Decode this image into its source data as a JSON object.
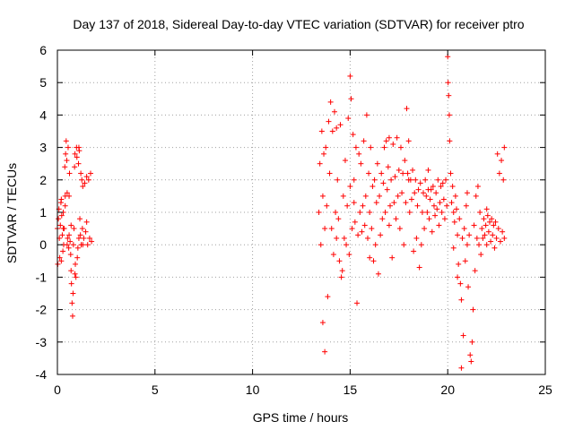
{
  "chart_data": {
    "type": "scatter",
    "title": "Day 137 of 2018, Sidereal Day-to-day VTEC variation (SDTVAR) for receiver ptro",
    "xlabel": "GPS time / hours",
    "ylabel": "SDTVAR / TECUs",
    "xlim": [
      0,
      25
    ],
    "ylim": [
      -4,
      6
    ],
    "x_ticks": [
      "0",
      "5",
      "10",
      "15",
      "20",
      "25"
    ],
    "y_ticks": [
      "-4",
      "-3",
      "-2",
      "-1",
      "0",
      "1",
      "2",
      "3",
      "4",
      "5",
      "6"
    ],
    "grid": true,
    "marker": "plus",
    "series_color": "#ff0000",
    "series": [
      {
        "name": "SDTVAR",
        "points": [
          [
            0.0,
            0.5
          ],
          [
            0.02,
            -0.6
          ],
          [
            0.05,
            0.8
          ],
          [
            0.08,
            1.1
          ],
          [
            0.1,
            0.2
          ],
          [
            0.12,
            -0.4
          ],
          [
            0.15,
            0.6
          ],
          [
            0.18,
            1.3
          ],
          [
            0.2,
            1.4
          ],
          [
            0.22,
            0.9
          ],
          [
            0.25,
            0.3
          ],
          [
            0.28,
            -0.2
          ],
          [
            0.3,
            1.0
          ],
          [
            0.32,
            0.0
          ],
          [
            0.35,
            0.5
          ],
          [
            0.38,
            2.4
          ],
          [
            0.4,
            1.5
          ],
          [
            0.42,
            2.8
          ],
          [
            0.45,
            3.2
          ],
          [
            0.48,
            2.6
          ],
          [
            0.5,
            1.6
          ],
          [
            0.52,
            0.2
          ],
          [
            0.55,
            3.0
          ],
          [
            0.58,
            -0.1
          ],
          [
            0.6,
            0.3
          ],
          [
            0.62,
            2.2
          ],
          [
            0.65,
            0.1
          ],
          [
            0.68,
            -0.3
          ],
          [
            0.7,
            -0.8
          ],
          [
            0.72,
            -1.2
          ],
          [
            0.75,
            -1.8
          ],
          [
            0.78,
            -2.2
          ],
          [
            0.8,
            -1.5
          ],
          [
            0.82,
            0.0
          ],
          [
            0.85,
            0.5
          ],
          [
            0.88,
            2.4
          ],
          [
            0.9,
            2.8
          ],
          [
            0.92,
            -0.6
          ],
          [
            0.95,
            -1.0
          ],
          [
            0.98,
            3.0
          ],
          [
            1.0,
            2.7
          ],
          [
            1.02,
            -0.4
          ],
          [
            1.05,
            -0.1
          ],
          [
            1.08,
            2.5
          ],
          [
            1.1,
            0.2
          ],
          [
            1.12,
            2.9
          ],
          [
            1.15,
            0.8
          ],
          [
            1.18,
            0.3
          ],
          [
            1.2,
            2.2
          ],
          [
            1.22,
            0.0
          ],
          [
            1.25,
            2.0
          ],
          [
            1.28,
            0.5
          ],
          [
            1.3,
            1.8
          ],
          [
            1.35,
            0.2
          ],
          [
            1.4,
            1.9
          ],
          [
            1.45,
            0.4
          ],
          [
            1.5,
            2.1
          ],
          [
            1.55,
            0.0
          ],
          [
            1.6,
            2.0
          ],
          [
            1.65,
            0.2
          ],
          [
            1.7,
            2.2
          ],
          [
            1.75,
            0.1
          ],
          [
            0.3,
            0.5
          ],
          [
            0.5,
            0.0
          ],
          [
            0.7,
            0.6
          ],
          [
            0.9,
            -0.9
          ],
          [
            1.1,
            3.0
          ],
          [
            1.3,
            0.0
          ],
          [
            1.5,
            0.7
          ],
          [
            0.4,
            1.2
          ],
          [
            0.6,
            1.5
          ],
          [
            0.2,
            -0.5
          ],
          [
            13.4,
            1.0
          ],
          [
            13.45,
            2.5
          ],
          [
            13.5,
            0.0
          ],
          [
            13.55,
            3.5
          ],
          [
            13.6,
            1.5
          ],
          [
            13.65,
            2.8
          ],
          [
            13.7,
            -3.3
          ],
          [
            13.7,
            0.5
          ],
          [
            13.75,
            3.0
          ],
          [
            13.8,
            1.2
          ],
          [
            13.85,
            -1.6
          ],
          [
            13.9,
            3.8
          ],
          [
            13.95,
            2.2
          ],
          [
            14.0,
            4.4
          ],
          [
            14.05,
            0.5
          ],
          [
            14.1,
            3.5
          ],
          [
            14.15,
            -0.3
          ],
          [
            14.2,
            4.1
          ],
          [
            14.25,
            1.0
          ],
          [
            14.3,
            3.6
          ],
          [
            14.35,
            2.0
          ],
          [
            14.4,
            0.8
          ],
          [
            14.45,
            -0.5
          ],
          [
            14.5,
            3.7
          ],
          [
            14.55,
            -1.0
          ],
          [
            14.6,
            -0.8
          ],
          [
            14.65,
            1.5
          ],
          [
            14.7,
            0.2
          ],
          [
            14.75,
            2.6
          ],
          [
            14.8,
            0.0
          ],
          [
            14.85,
            1.2
          ],
          [
            14.9,
            3.9
          ],
          [
            14.95,
            -0.3
          ],
          [
            15.0,
            5.2
          ],
          [
            15.0,
            1.8
          ],
          [
            15.05,
            4.5
          ],
          [
            15.1,
            0.5
          ],
          [
            15.15,
            3.4
          ],
          [
            15.2,
            2.0
          ],
          [
            15.25,
            0.7
          ],
          [
            15.3,
            3.0
          ],
          [
            15.35,
            -1.8
          ],
          [
            15.4,
            0.3
          ],
          [
            15.45,
            2.8
          ],
          [
            15.5,
            1.0
          ],
          [
            15.55,
            2.5
          ],
          [
            15.6,
            0.4
          ],
          [
            15.65,
            1.2
          ],
          [
            15.7,
            3.2
          ],
          [
            15.75,
            0.6
          ],
          [
            15.8,
            1.5
          ],
          [
            15.85,
            4.0
          ],
          [
            15.9,
            0.2
          ],
          [
            15.95,
            2.2
          ],
          [
            16.0,
            1.0
          ],
          [
            16.05,
            3.0
          ],
          [
            16.1,
            0.5
          ],
          [
            16.15,
            1.8
          ],
          [
            16.2,
            -0.5
          ],
          [
            16.25,
            2.0
          ],
          [
            16.3,
            0.0
          ],
          [
            16.35,
            1.3
          ],
          [
            16.4,
            2.5
          ],
          [
            16.45,
            -0.9
          ],
          [
            16.5,
            1.5
          ],
          [
            16.55,
            0.3
          ],
          [
            16.6,
            2.2
          ],
          [
            16.65,
            0.8
          ],
          [
            16.7,
            1.9
          ],
          [
            16.75,
            3.0
          ],
          [
            16.8,
            1.0
          ],
          [
            16.85,
            3.2
          ],
          [
            16.9,
            1.7
          ],
          [
            16.95,
            2.4
          ],
          [
            17.0,
            3.3
          ],
          [
            17.05,
            1.2
          ],
          [
            17.1,
            2.0
          ],
          [
            17.15,
            -0.4
          ],
          [
            17.2,
            3.1
          ],
          [
            17.25,
            1.3
          ],
          [
            17.3,
            2.1
          ],
          [
            17.35,
            0.8
          ],
          [
            17.4,
            3.3
          ],
          [
            17.45,
            1.5
          ],
          [
            17.5,
            2.3
          ],
          [
            17.55,
            0.5
          ],
          [
            17.6,
            3.0
          ],
          [
            17.65,
            1.6
          ],
          [
            17.7,
            2.2
          ],
          [
            17.75,
            0.0
          ],
          [
            17.8,
            2.6
          ],
          [
            17.85,
            1.3
          ],
          [
            17.9,
            4.2
          ],
          [
            17.95,
            2.2
          ],
          [
            18.0,
            3.2
          ],
          [
            18.05,
            1.0
          ],
          [
            18.1,
            2.0
          ],
          [
            18.15,
            1.4
          ],
          [
            18.2,
            2.3
          ],
          [
            18.25,
            -0.2
          ],
          [
            18.3,
            1.6
          ],
          [
            18.35,
            2.0
          ],
          [
            18.4,
            0.2
          ],
          [
            18.45,
            1.2
          ],
          [
            18.5,
            1.7
          ],
          [
            18.55,
            -0.7
          ],
          [
            18.6,
            1.9
          ],
          [
            18.65,
            0.0
          ],
          [
            18.7,
            1.0
          ],
          [
            18.75,
            1.6
          ],
          [
            18.8,
            0.5
          ],
          [
            18.85,
            2.0
          ],
          [
            18.9,
            1.5
          ],
          [
            18.95,
            1.0
          ],
          [
            19.0,
            2.3
          ],
          [
            19.05,
            0.8
          ],
          [
            19.1,
            1.4
          ],
          [
            19.15,
            1.7
          ],
          [
            19.2,
            0.4
          ],
          [
            19.25,
            1.8
          ],
          [
            19.3,
            1.2
          ],
          [
            19.35,
            0.9
          ],
          [
            19.4,
            1.6
          ],
          [
            19.45,
            1.1
          ],
          [
            19.5,
            2.0
          ],
          [
            19.55,
            0.6
          ],
          [
            19.6,
            1.3
          ],
          [
            19.65,
            1.8
          ],
          [
            19.7,
            1.0
          ],
          [
            19.75,
            1.9
          ],
          [
            19.8,
            1.4
          ],
          [
            19.85,
            0.8
          ],
          [
            19.9,
            2.0
          ],
          [
            19.95,
            1.2
          ],
          [
            20.0,
            5.8
          ],
          [
            20.02,
            5.0
          ],
          [
            20.05,
            4.6
          ],
          [
            20.08,
            4.0
          ],
          [
            20.1,
            3.2
          ],
          [
            20.15,
            2.2
          ],
          [
            20.2,
            1.3
          ],
          [
            20.25,
            1.8
          ],
          [
            20.3,
            1.0
          ],
          [
            20.35,
            0.7
          ],
          [
            20.4,
            1.5
          ],
          [
            20.45,
            1.1
          ],
          [
            20.5,
            0.3
          ],
          [
            20.55,
            -0.6
          ],
          [
            20.6,
            0.8
          ],
          [
            20.65,
            -1.2
          ],
          [
            20.7,
            -1.7
          ],
          [
            20.7,
            -3.8
          ],
          [
            20.75,
            0.2
          ],
          [
            20.8,
            -2.8
          ],
          [
            20.85,
            0.5
          ],
          [
            20.9,
            -0.5
          ],
          [
            20.95,
            1.2
          ],
          [
            21.0,
            0.0
          ],
          [
            21.05,
            -1.3
          ],
          [
            21.1,
            0.3
          ],
          [
            21.15,
            -3.4
          ],
          [
            21.2,
            -3.6
          ],
          [
            21.25,
            -3.0
          ],
          [
            21.3,
            -2.0
          ],
          [
            21.35,
            0.6
          ],
          [
            21.4,
            -0.8
          ],
          [
            21.45,
            1.5
          ],
          [
            21.5,
            0.2
          ],
          [
            21.55,
            1.8
          ],
          [
            21.6,
            0.0
          ],
          [
            21.65,
            1.0
          ],
          [
            21.7,
            -0.3
          ],
          [
            21.75,
            0.5
          ],
          [
            21.8,
            0.2
          ],
          [
            21.85,
            0.8
          ],
          [
            21.9,
            0.3
          ],
          [
            21.95,
            0.6
          ],
          [
            22.0,
            0.0
          ],
          [
            22.05,
            0.9
          ],
          [
            22.1,
            0.4
          ],
          [
            22.15,
            0.7
          ],
          [
            22.2,
            0.1
          ],
          [
            22.25,
            0.8
          ],
          [
            22.3,
            0.3
          ],
          [
            22.35,
            0.6
          ],
          [
            22.4,
            -0.1
          ],
          [
            22.45,
            0.7
          ],
          [
            22.5,
            0.2
          ],
          [
            22.55,
            2.8
          ],
          [
            22.6,
            0.5
          ],
          [
            22.65,
            2.2
          ],
          [
            22.7,
            0.1
          ],
          [
            22.75,
            2.6
          ],
          [
            22.8,
            0.4
          ],
          [
            22.85,
            2.0
          ],
          [
            22.9,
            0.2
          ],
          [
            22.9,
            3.0
          ],
          [
            13.6,
            -2.4
          ],
          [
            14.3,
            0.2
          ],
          [
            15.2,
            1.3
          ],
          [
            16.0,
            -0.4
          ],
          [
            17.0,
            0.6
          ],
          [
            18.0,
            2.0
          ],
          [
            19.0,
            1.7
          ],
          [
            20.3,
            -0.1
          ],
          [
            21.0,
            1.6
          ],
          [
            22.0,
            1.1
          ],
          [
            20.5,
            -1.0
          ]
        ]
      }
    ]
  }
}
